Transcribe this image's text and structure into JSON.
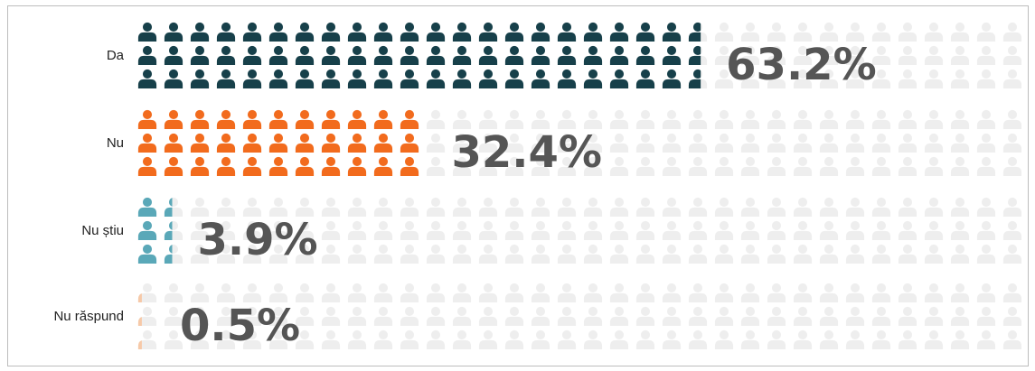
{
  "chart_data": {
    "type": "pictograph",
    "unit": "person-icon",
    "categories": [
      "Da",
      "Nu",
      "Nu știu",
      "Nu răspund"
    ],
    "values": [
      63.2,
      32.4,
      3.9,
      0.5
    ],
    "value_labels": [
      "63.2%",
      "32.4%",
      "3.9%",
      "0.5%"
    ],
    "colors": [
      "#17404a",
      "#f26b1d",
      "#5aa8b8",
      "#f6c9a8"
    ],
    "background_icon_color": "#eeeeee",
    "title": "",
    "xlabel": "",
    "ylabel": ""
  }
}
